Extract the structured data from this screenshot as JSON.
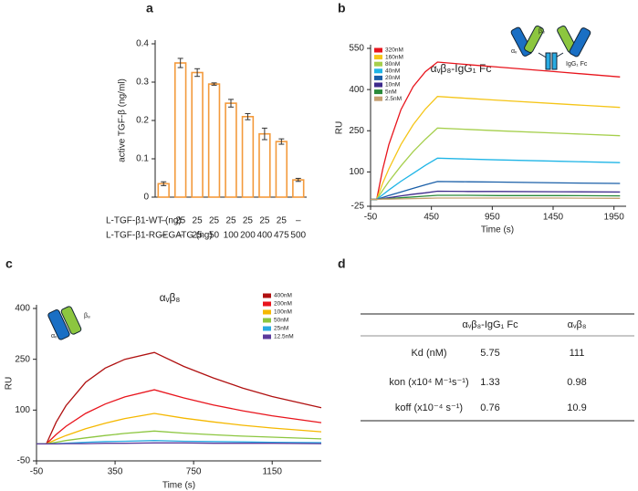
{
  "chart_data": [
    {
      "type": "bar",
      "label": "a",
      "ylabel": "active TGF-β (ng/ml)",
      "category_rows": [
        {
          "name": "L-TGF-β1-WT (ng)",
          "labels": [
            "–",
            "25",
            "25",
            "25",
            "25",
            "25",
            "25",
            "25",
            "–"
          ]
        },
        {
          "name": "L-TGF-β1-RGEGATG (ng)",
          "labels": [
            "–",
            "–",
            "25",
            "50",
            "100",
            "200",
            "400",
            "475",
            "500"
          ]
        }
      ],
      "values": [
        0.035,
        0.35,
        0.325,
        0.295,
        0.245,
        0.21,
        0.165,
        0.145,
        0.045
      ],
      "errors": [
        0.005,
        0.012,
        0.01,
        0.003,
        0.01,
        0.008,
        0.015,
        0.007,
        0.004
      ],
      "color": "#f39a3c",
      "ylim": [
        0,
        0.4
      ],
      "yticks": [
        0,
        0.1,
        0.2,
        0.3,
        0.4
      ]
    },
    {
      "type": "line",
      "label": "b",
      "ylabel": "RU",
      "xlabel": "Time (s)",
      "annotation": "αᵥβ₈-IgG₁ Fc",
      "icon_labels": [
        "αᵥ",
        "β₈",
        "IgG₁ Fc"
      ],
      "legend": "upper left",
      "x": [
        -50,
        0,
        50,
        100,
        200,
        300,
        400,
        500,
        750,
        1000,
        1500,
        2000
      ],
      "xlim": [
        -50,
        2050
      ],
      "xticks": [
        -50,
        450,
        950,
        1450,
        1950
      ],
      "ylim": [
        -25,
        550
      ],
      "yticks": [
        -25,
        100,
        250,
        400,
        550
      ],
      "series": [
        {
          "name": "320nM",
          "color": "#e8141c",
          "values": [
            0,
            0,
            110,
            199,
            327,
            411,
            465,
            500,
            491,
            482,
            464,
            446
          ]
        },
        {
          "name": "160nM",
          "color": "#f5c518",
          "values": [
            0,
            0,
            59,
            111,
            200,
            272,
            329,
            375,
            368,
            361,
            348,
            335
          ]
        },
        {
          "name": "80nM",
          "color": "#a5cf4c",
          "values": [
            0,
            0,
            33,
            65,
            122,
            174,
            219,
            260,
            255,
            250,
            241,
            232
          ]
        },
        {
          "name": "40nM",
          "color": "#1fb5e6",
          "values": [
            0,
            0,
            17,
            34,
            66,
            95,
            124,
            150,
            147,
            144,
            139,
            134
          ]
        },
        {
          "name": "20nM",
          "color": "#1a5fa8",
          "values": [
            0,
            0,
            7,
            14,
            27,
            40,
            53,
            65,
            64,
            63,
            60,
            58
          ]
        },
        {
          "name": "10nM",
          "color": "#3d2a8c",
          "values": [
            0,
            0,
            3,
            6,
            13,
            19,
            24,
            30,
            29,
            29,
            28,
            27
          ]
        },
        {
          "name": "5nM",
          "color": "#2a8a3a",
          "values": [
            0,
            0,
            2,
            3,
            6,
            9,
            12,
            15,
            15,
            14,
            14,
            13
          ]
        },
        {
          "name": "2.5nM",
          "color": "#c4a070",
          "values": [
            0,
            0,
            1,
            1,
            2,
            3,
            4,
            5,
            5,
            5,
            5,
            4
          ]
        }
      ]
    },
    {
      "type": "line",
      "label": "c",
      "ylabel": "RU",
      "xlabel": "Time (s)",
      "annotation": "αᵥβ₈",
      "icon_labels": [
        "αᵥ",
        "β₈"
      ],
      "legend": "upper right",
      "x": [
        -50,
        0,
        50,
        100,
        200,
        300,
        400,
        550,
        700,
        850,
        1000,
        1150,
        1400
      ],
      "xlim": [
        -50,
        1400
      ],
      "xticks": [
        -50,
        350,
        750,
        1150
      ],
      "ylim": [
        -50,
        400
      ],
      "yticks": [
        -50,
        100,
        250,
        400
      ],
      "series": [
        {
          "name": "400nM",
          "color": "#b01010",
          "values": [
            0,
            0,
            64,
            113,
            182,
            224,
            250,
            270,
            229,
            195,
            165,
            140,
            107
          ]
        },
        {
          "name": "200nM",
          "color": "#e8141c",
          "values": [
            0,
            0,
            28,
            52,
            90,
            118,
            139,
            160,
            136,
            115,
            98,
            83,
            63
          ]
        },
        {
          "name": "100nM",
          "color": "#f5b800",
          "values": [
            0,
            0,
            13,
            25,
            45,
            61,
            75,
            90,
            76,
            65,
            55,
            47,
            36
          ]
        },
        {
          "name": "50nM",
          "color": "#8cc63f",
          "values": [
            0,
            0,
            5,
            10,
            18,
            25,
            31,
            38,
            32,
            27,
            23,
            20,
            15
          ]
        },
        {
          "name": "25nM",
          "color": "#29abe2",
          "values": [
            0,
            0,
            1,
            2,
            5,
            7,
            8,
            10,
            8,
            7,
            6,
            5,
            4
          ]
        },
        {
          "name": "12.5nM",
          "color": "#5b3a9c",
          "values": [
            0,
            0,
            0,
            1,
            1,
            2,
            2,
            3,
            3,
            2,
            2,
            2,
            1
          ]
        }
      ]
    }
  ],
  "table": {
    "label": "d",
    "headers": [
      "αᵥβ₈-IgG₁ Fc",
      "αᵥβ₈"
    ],
    "rows": [
      [
        "Kd (nM)",
        "5.75",
        "111"
      ],
      [
        "kon (x10⁴ M⁻¹s⁻¹)",
        "1.33",
        "0.98"
      ],
      [
        "koff (x10⁻⁴ s⁻¹)",
        "0.76",
        "10.9"
      ]
    ]
  }
}
